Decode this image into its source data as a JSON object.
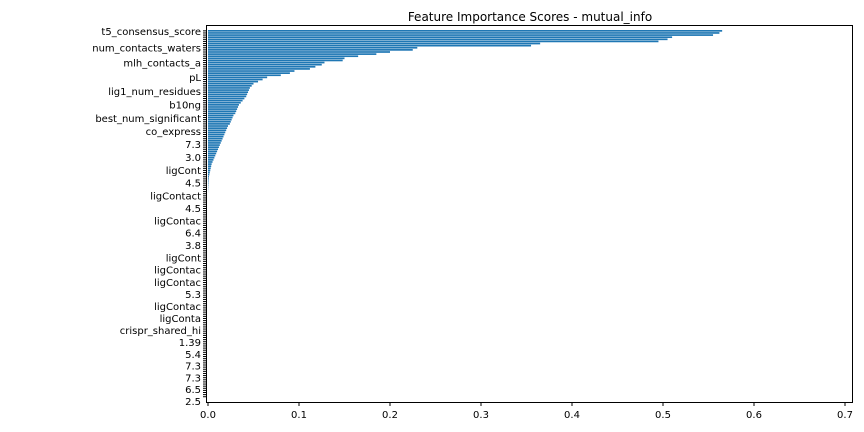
{
  "chart_data": {
    "type": "bar",
    "orientation": "horizontal",
    "title": "Feature Importance Scores - mutual_info",
    "xlabel": "",
    "ylabel": "",
    "xlim": [
      0,
      0.715
    ],
    "xticks": [
      "0.0",
      "0.1",
      "0.2",
      "0.3",
      "0.4",
      "0.5",
      "0.6",
      "0.7"
    ],
    "xtick_values": [
      0,
      0.1,
      0.2,
      0.3,
      0.4,
      0.5,
      0.6,
      0.7
    ],
    "grid": false,
    "legend": "none",
    "bar_color": "#1f77b4",
    "visible_category_labels": [
      "t5_consensus_score",
      "num_contacts_waters",
      "mlh_contacts_a",
      "pL",
      "lig1_num_residues",
      "b10ng",
      "best_num_significant",
      "co_express",
      "7.3",
      "3.0",
      "ligCont",
      "4.5",
      "ligContact",
      "4.5",
      "ligContac",
      "6.4",
      "3.8",
      "ligCont",
      "ligContac",
      "ligContac",
      "5.3",
      "ligContac",
      "ligConta",
      "crispr_shared_hi",
      "1.39",
      "5.4",
      "7.3",
      "7.3",
      "6.5",
      "2.5"
    ],
    "values": [
      0.565,
      0.562,
      0.555,
      0.51,
      0.505,
      0.495,
      0.365,
      0.355,
      0.23,
      0.225,
      0.2,
      0.185,
      0.165,
      0.15,
      0.148,
      0.128,
      0.125,
      0.118,
      0.112,
      0.095,
      0.09,
      0.08,
      0.065,
      0.06,
      0.055,
      0.05,
      0.048,
      0.046,
      0.045,
      0.044,
      0.043,
      0.042,
      0.04,
      0.038,
      0.036,
      0.034,
      0.033,
      0.032,
      0.031,
      0.03,
      0.028,
      0.027,
      0.026,
      0.025,
      0.024,
      0.022,
      0.021,
      0.02,
      0.019,
      0.018,
      0.017,
      0.016,
      0.015,
      0.014,
      0.013,
      0.012,
      0.011,
      0.01,
      0.009,
      0.008,
      0.007,
      0.006,
      0.005,
      0.004,
      0.0035,
      0.003,
      0.0025,
      0.002,
      0.0015,
      0.001,
      0.0008,
      0.0006,
      0.0005,
      0.0004,
      0.0003,
      0.0002,
      0.0001,
      0,
      0,
      0,
      0,
      0,
      0,
      0,
      0,
      0,
      0,
      0,
      0,
      0,
      0,
      0,
      0,
      0,
      0,
      0,
      0,
      0,
      0,
      0,
      0,
      0,
      0,
      0,
      0,
      0,
      0,
      0,
      0,
      0,
      0,
      0,
      0,
      0,
      0,
      0,
      0,
      0,
      0,
      0,
      0,
      0,
      0,
      0,
      0,
      0,
      0,
      0,
      0,
      0,
      0,
      0,
      0,
      0,
      0,
      0,
      0,
      0,
      0,
      0,
      0,
      0,
      0,
      0,
      0,
      0,
      0,
      0,
      0,
      0,
      0,
      0,
      0,
      0,
      0,
      0,
      0,
      0,
      0,
      0,
      0,
      0,
      0,
      0,
      0,
      0,
      0,
      0,
      0,
      0,
      0,
      0,
      0,
      0
    ]
  }
}
